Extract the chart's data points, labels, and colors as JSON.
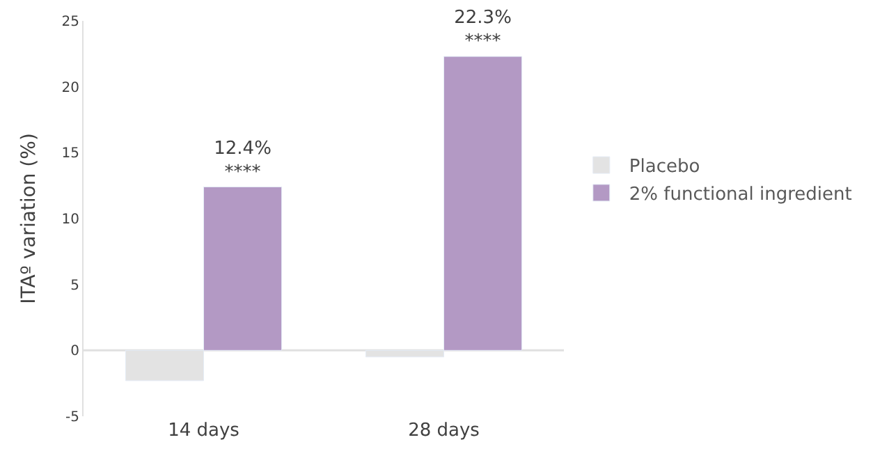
{
  "chart_data": {
    "type": "bar",
    "ylabel": "ITAº variation (%)",
    "categories": [
      "14 days",
      "28 days"
    ],
    "series": [
      {
        "name": "Placebo",
        "color": "#e3e3e3",
        "values": [
          -2.3,
          -0.5
        ]
      },
      {
        "name": "2% functional ingredient",
        "color": "#b399c4",
        "values": [
          12.4,
          22.3
        ],
        "value_labels": [
          "12.4%\n****",
          "22.3%\n****"
        ]
      }
    ],
    "ylim": [
      -5,
      25
    ],
    "yticks": [
      -5,
      0,
      5,
      10,
      15,
      20,
      25
    ],
    "grid": false,
    "ref_lines": [
      {
        "axis": "y",
        "value": 0,
        "color": "#e0e0e0"
      }
    ],
    "legend": "right"
  }
}
